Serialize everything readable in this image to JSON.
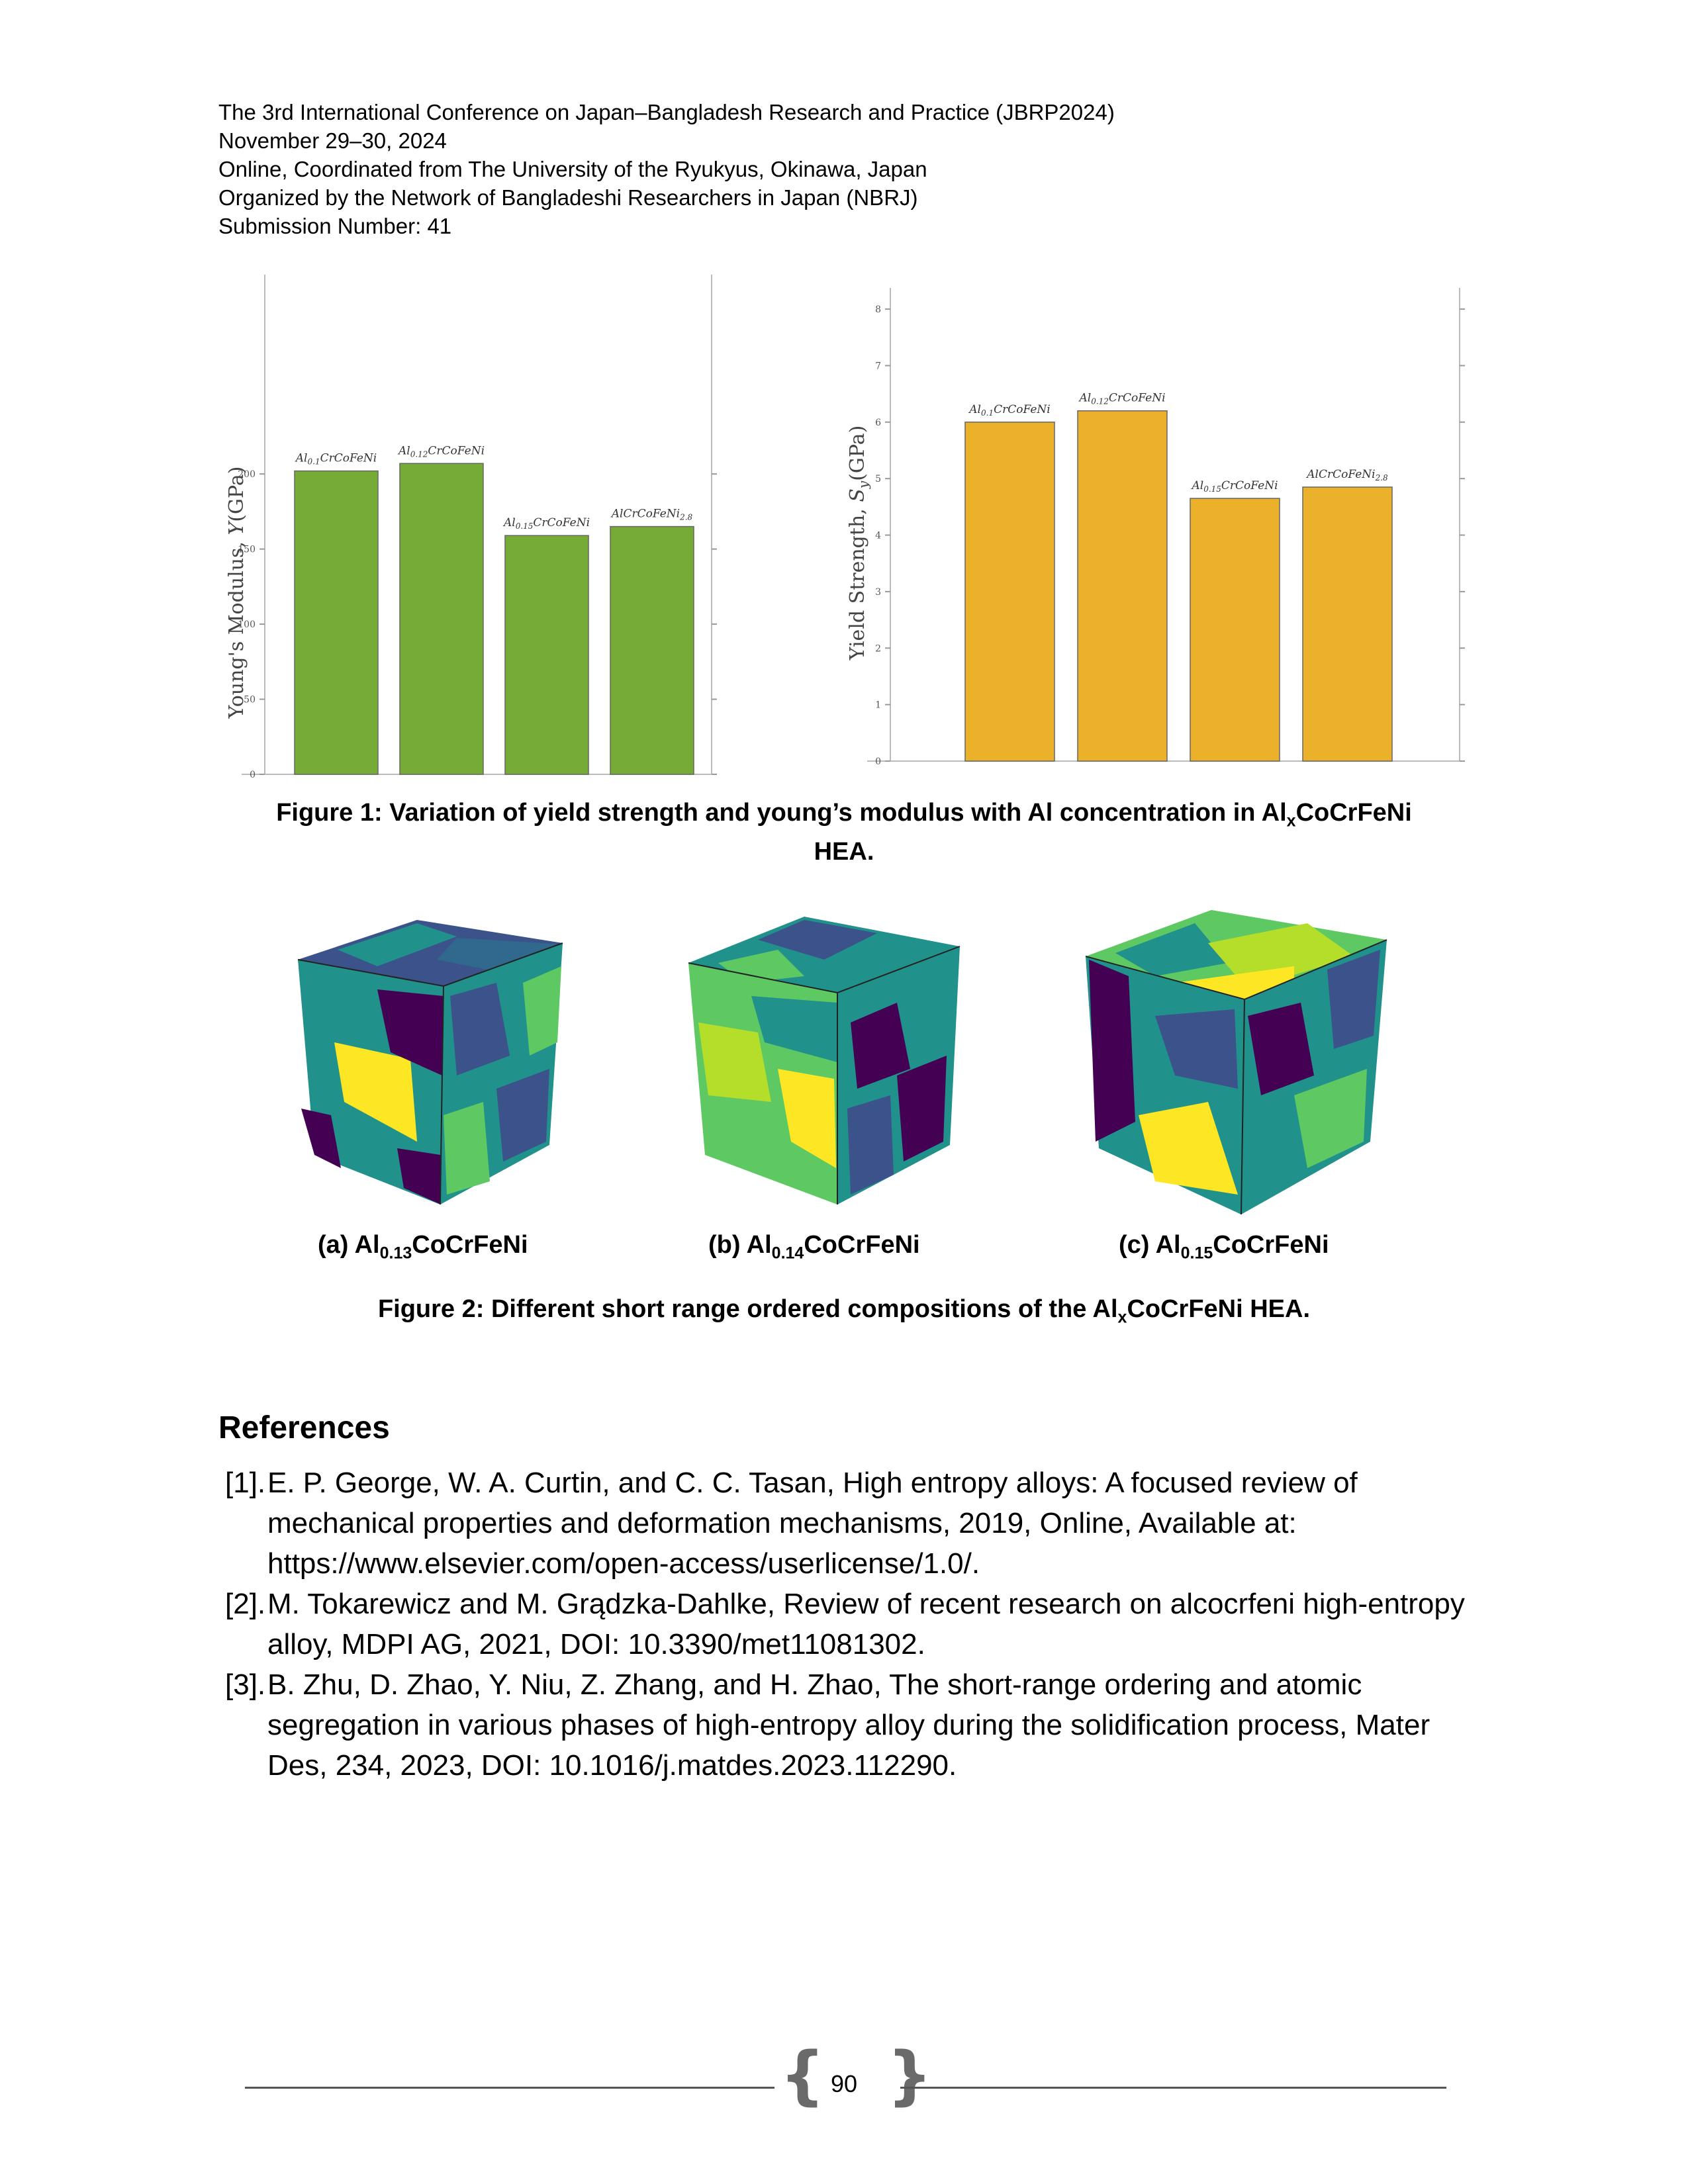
{
  "header": {
    "line1": "The 3rd International Conference on Japan–Bangladesh Research and Practice (JBRP2024)",
    "line2": "November 29–30, 2024",
    "line3": "Online, Coordinated from The University of the Ryukyus, Okinawa, Japan",
    "line4": "Organized by the Network of Bangladeshi Researchers in Japan (NBRJ)",
    "line5": "Submission Number: 41"
  },
  "chart_data": [
    {
      "type": "bar",
      "categories": [
        "Al0.1CrCoFeNi",
        "Al0.12CrCoFeNi",
        "Al0.15CrCoFeNi",
        "AlCrCoFeNi2.8"
      ],
      "values": [
        202,
        207,
        159,
        165
      ],
      "ylabel": "Young's Modulus, Y(GPa)",
      "ylim": [
        0,
        260
      ],
      "yticks": [
        0,
        50,
        100,
        150,
        200
      ],
      "grid": false,
      "color": "#76AB35"
    },
    {
      "type": "bar",
      "categories": [
        "Al0.1CrCoFeNi",
        "Al0.12CrCoFeNi",
        "Al0.15CrCoFeNi",
        "AlCrCoFeNi2.8"
      ],
      "values": [
        6.0,
        6.2,
        4.65,
        4.85
      ],
      "ylabel": "Yield Strength, Sy(GPa)",
      "ylim": [
        0,
        8.2
      ],
      "yticks": [
        0,
        1,
        2,
        3,
        4,
        5,
        6,
        7,
        8
      ],
      "grid": false,
      "color": "#EBB12B"
    }
  ],
  "figure1": {
    "caption": "Figure 1: Variation of yield strength and young’s modulus with Al concentration in Al",
    "caption_sub": "x",
    "caption_tail": "CoCrFeNi",
    "caption_line2": "HEA."
  },
  "figure2": {
    "a_prefix": "(a) Al",
    "a_sub": "0.13",
    "a_tail": "CoCrFeNi",
    "b_prefix": "(b) Al",
    "b_sub": "0.14",
    "b_tail": "CoCrFeNi",
    "c_prefix": "(c) Al",
    "c_sub": "0.15",
    "c_tail": "CoCrFeNi",
    "caption": "Figure 2: Different short range ordered compositions of the Al",
    "caption_sub": "x",
    "caption_tail": "CoCrFeNi HEA.",
    "colors": [
      "#440154",
      "#3b528b",
      "#21918c",
      "#5ec962",
      "#b5de2b",
      "#fde725"
    ]
  },
  "references": {
    "heading": "References",
    "items": [
      {
        "num": "[1].",
        "text": "E. P. George, W. A. Curtin, and C. C. Tasan, High entropy alloys: A focused review of mechanical properties and deformation mechanisms, 2019, Online, Available at: https://www.elsevier.com/open-access/userlicense/1.0/."
      },
      {
        "num": "[2].",
        "text": "M. Tokarewicz and M. Grądzka-Dahlke, Review of recent research on alcocrfeni high-entropy alloy, MDPI AG, 2021, DOI: 10.3390/met11081302."
      },
      {
        "num": "[3].",
        "text": "B. Zhu, D. Zhao, Y. Niu, Z. Zhang, and H. Zhao, The short-range ordering and atomic segregation in various phases of high-entropy alloy during the solidification process, Mater Des, 234, 2023, DOI: 10.1016/j.matdes.2023.112290."
      }
    ]
  },
  "footer": {
    "page_number": "90",
    "bracket_left": "{",
    "bracket_right": "}"
  }
}
